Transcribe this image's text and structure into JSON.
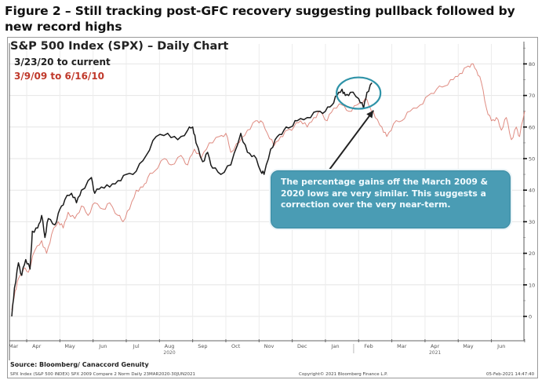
{
  "figure_title": "Figure 2 – Still tracking post-GFC recovery suggesting pullback followed by new record highs",
  "source": "Source: Bloomberg/ Canaccord Genuity",
  "footnote": "SPX Index (S&P 500 INDEX) SPX 2009 Compare 2 Norm  Daily 23MAR2020-30JUN2021",
  "copyright": "Copyright© 2021 Bloomberg Finance L.P.",
  "timestamp": "05-Feb-2021 14:47:40",
  "callout_text": "The percentage gains off the March 2009 & 2020 lows are very similar.  This suggests a correction over the very near-term.",
  "colors": {
    "series_2020": "#1a1a1a",
    "series_2009": "#d9776b",
    "callout_bg": "#4a9cb4",
    "highlight_ellipse": "#2f93a8",
    "legend_red": "#c0392b"
  },
  "chart_data": {
    "type": "line",
    "title": "S&P 500 Index (SPX) – Daily Chart",
    "xlabel": "",
    "ylabel": "",
    "y_axis_side": "right",
    "ylim": [
      0,
      85
    ],
    "yticks": [
      0,
      10,
      20,
      30,
      40,
      50,
      60,
      70,
      80
    ],
    "xlim_months": [
      0,
      15.5
    ],
    "x_ticks": [
      {
        "label": "Mar",
        "m": 0.05
      },
      {
        "label": "Apr",
        "m": 0.75
      },
      {
        "label": "May",
        "m": 1.75
      },
      {
        "label": "Jun",
        "m": 2.75
      },
      {
        "label": "Jul",
        "m": 3.75
      },
      {
        "label": "Aug",
        "m": 4.75
      },
      {
        "label": "Sep",
        "m": 5.75
      },
      {
        "label": "Oct",
        "m": 6.75
      },
      {
        "label": "Nov",
        "m": 7.75
      },
      {
        "label": "Dec",
        "m": 8.75
      },
      {
        "label": "Jan",
        "m": 9.75
      },
      {
        "label": "Feb",
        "m": 10.75
      },
      {
        "label": "Mar",
        "m": 11.75
      },
      {
        "label": "Apr",
        "m": 12.75
      },
      {
        "label": "May",
        "m": 13.75
      },
      {
        "label": "Jun",
        "m": 14.75
      }
    ],
    "year_labels": [
      {
        "label": "2020",
        "m": 4.75
      },
      {
        "label": "2021",
        "m": 12.75
      }
    ],
    "grid": true,
    "legend": [
      {
        "name": "3/23/20 to current",
        "placement": "top-left"
      },
      {
        "name": "3/9/09 to 6/16/10",
        "placement": "top-left"
      }
    ],
    "series": [
      {
        "name": "3/23/20 to current",
        "points": [
          [
            0.0,
            0
          ],
          [
            0.08,
            9
          ],
          [
            0.2,
            17
          ],
          [
            0.3,
            13
          ],
          [
            0.42,
            18
          ],
          [
            0.55,
            15
          ],
          [
            0.62,
            27
          ],
          [
            0.78,
            28
          ],
          [
            0.9,
            32
          ],
          [
            1.0,
            25
          ],
          [
            1.1,
            31
          ],
          [
            1.3,
            29
          ],
          [
            1.45,
            34
          ],
          [
            1.6,
            37
          ],
          [
            1.8,
            39
          ],
          [
            1.95,
            36
          ],
          [
            2.1,
            40
          ],
          [
            2.4,
            44
          ],
          [
            2.5,
            39
          ],
          [
            2.7,
            41
          ],
          [
            2.95,
            41
          ],
          [
            3.2,
            43
          ],
          [
            3.45,
            45
          ],
          [
            3.75,
            46
          ],
          [
            4.05,
            51
          ],
          [
            4.35,
            57
          ],
          [
            4.7,
            58
          ],
          [
            5.0,
            56
          ],
          [
            5.3,
            59
          ],
          [
            5.45,
            60
          ],
          [
            5.55,
            55
          ],
          [
            5.75,
            49
          ],
          [
            5.9,
            52
          ],
          [
            6.05,
            47
          ],
          [
            6.3,
            45
          ],
          [
            6.6,
            48
          ],
          [
            6.9,
            58
          ],
          [
            7.1,
            52
          ],
          [
            7.3,
            51
          ],
          [
            7.5,
            46
          ],
          [
            7.6,
            45
          ],
          [
            7.8,
            53
          ],
          [
            8.0,
            57
          ],
          [
            8.2,
            59
          ],
          [
            8.4,
            60
          ],
          [
            8.6,
            62
          ],
          [
            8.9,
            63
          ],
          [
            9.2,
            65
          ],
          [
            9.45,
            65
          ],
          [
            9.65,
            67
          ],
          [
            9.8,
            70
          ],
          [
            9.95,
            72
          ],
          [
            10.05,
            70
          ],
          [
            10.2,
            71
          ],
          [
            10.45,
            69
          ],
          [
            10.6,
            66
          ],
          [
            10.7,
            71
          ],
          [
            10.85,
            74
          ]
        ]
      },
      {
        "name": "3/9/09 to 6/16/10",
        "points": [
          [
            0.0,
            2
          ],
          [
            0.1,
            8
          ],
          [
            0.2,
            12
          ],
          [
            0.35,
            15
          ],
          [
            0.5,
            14
          ],
          [
            0.7,
            21
          ],
          [
            0.9,
            24
          ],
          [
            1.05,
            20
          ],
          [
            1.2,
            26
          ],
          [
            1.4,
            30
          ],
          [
            1.55,
            28
          ],
          [
            1.7,
            33
          ],
          [
            1.9,
            31
          ],
          [
            2.1,
            35
          ],
          [
            2.3,
            32
          ],
          [
            2.5,
            36
          ],
          [
            2.75,
            34
          ],
          [
            2.95,
            36
          ],
          [
            3.2,
            32
          ],
          [
            3.35,
            30
          ],
          [
            3.55,
            34
          ],
          [
            3.75,
            40
          ],
          [
            3.95,
            41
          ],
          [
            4.1,
            44
          ],
          [
            4.3,
            46
          ],
          [
            4.6,
            50
          ],
          [
            4.8,
            48
          ],
          [
            5.1,
            51
          ],
          [
            5.3,
            48
          ],
          [
            5.5,
            53
          ],
          [
            5.7,
            50
          ],
          [
            5.95,
            55
          ],
          [
            6.25,
            57
          ],
          [
            6.45,
            58
          ],
          [
            6.6,
            52
          ],
          [
            6.85,
            55
          ],
          [
            7.1,
            59
          ],
          [
            7.35,
            62
          ],
          [
            7.5,
            62
          ],
          [
            7.7,
            58
          ],
          [
            7.9,
            54
          ],
          [
            8.1,
            57
          ],
          [
            8.3,
            59
          ],
          [
            8.5,
            60
          ],
          [
            8.7,
            62
          ],
          [
            8.9,
            60
          ],
          [
            9.1,
            63
          ],
          [
            9.3,
            65
          ],
          [
            9.5,
            62
          ],
          [
            9.7,
            66
          ],
          [
            9.95,
            67
          ],
          [
            10.15,
            65
          ],
          [
            10.4,
            67
          ],
          [
            10.65,
            69
          ],
          [
            10.8,
            66
          ],
          [
            10.95,
            63
          ],
          [
            11.15,
            60
          ],
          [
            11.3,
            57
          ],
          [
            11.5,
            61
          ],
          [
            11.75,
            62
          ],
          [
            12.0,
            65
          ],
          [
            12.3,
            67
          ],
          [
            12.55,
            70
          ],
          [
            12.8,
            72
          ],
          [
            13.05,
            73
          ],
          [
            13.3,
            75
          ],
          [
            13.5,
            77
          ],
          [
            13.7,
            79
          ],
          [
            13.85,
            80
          ],
          [
            14.0,
            78
          ],
          [
            14.15,
            74
          ],
          [
            14.3,
            66
          ],
          [
            14.45,
            62
          ],
          [
            14.6,
            63
          ],
          [
            14.75,
            59
          ],
          [
            14.9,
            63
          ],
          [
            15.05,
            56
          ],
          [
            15.2,
            60
          ],
          [
            15.3,
            57
          ],
          [
            15.45,
            65
          ]
        ]
      }
    ],
    "annotations": [
      {
        "type": "ellipse",
        "center_month": 10.4,
        "center_value": 71,
        "label": "recent high highlight"
      },
      {
        "type": "arrow",
        "from": "callout",
        "to_month": 10.85,
        "to_value": 66
      }
    ]
  }
}
